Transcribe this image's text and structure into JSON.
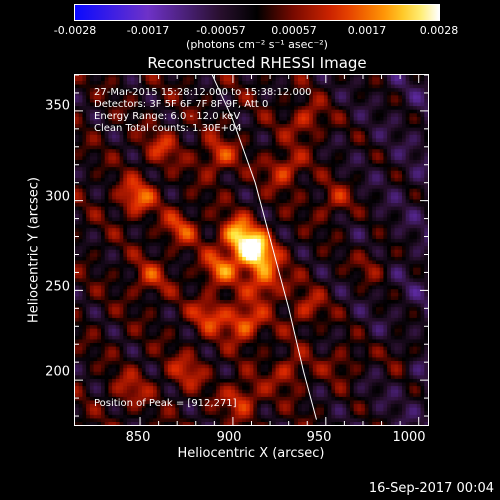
{
  "colorbar": {
    "ticks": [
      "-0.0028",
      "-0.0017",
      "-0.00057",
      "0.00057",
      "0.0017",
      "0.0028"
    ],
    "units": "(photons cm⁻² s⁻¹ asec⁻²)",
    "range": [
      -0.0028,
      0.0028
    ]
  },
  "plot": {
    "title": "Reconstructed RHESSI Image",
    "info_lines": [
      "27-Mar-2015 15:28:12.000 to 15:38:12.000",
      "Detectors: 3F 5F 6F 7F 8F 9F, Att 0",
      "Energy Range: 6.0 - 12.0 keV",
      "Clean     Total counts: 1.30E+04"
    ],
    "peak_label": "Position of Peak = [912,271]"
  },
  "footer": {
    "date": "16-Sep-2017 00:04"
  },
  "colors": {
    "background": "#000000",
    "axis": "#ffffff",
    "limb": "#ffffff"
  },
  "chart_data": {
    "type": "heatmap",
    "title": "Reconstructed RHESSI Image",
    "xlabel": "Heliocentric X (arcsec)",
    "ylabel": "Heliocentric Y (arcsec)",
    "xlim": [
      815,
      1005
    ],
    "ylim": [
      175,
      370
    ],
    "xticks": [
      "850",
      "900",
      "950",
      "1000"
    ],
    "yticks": [
      "200",
      "250",
      "300",
      "350"
    ],
    "peak": [
      912,
      271
    ],
    "colormap": "blue-purple-black-red-orange-yellow-white",
    "sources": [
      {
        "x": 912,
        "y": 271,
        "amplitude": 1.0
      },
      {
        "x": 903,
        "y": 281,
        "amplitude": 0.75
      },
      {
        "x": 918,
        "y": 255,
        "amplitude": 0.55
      },
      {
        "x": 893,
        "y": 262,
        "amplitude": 0.5
      },
      {
        "x": 906,
        "y": 232,
        "amplitude": 0.6
      },
      {
        "x": 888,
        "y": 237,
        "amplitude": 0.45
      },
      {
        "x": 848,
        "y": 302,
        "amplitude": 0.55
      },
      {
        "x": 872,
        "y": 285,
        "amplitude": 0.4
      },
      {
        "x": 855,
        "y": 257,
        "amplitude": 0.35
      },
      {
        "x": 892,
        "y": 325,
        "amplitude": 0.45
      },
      {
        "x": 862,
        "y": 330,
        "amplitude": 0.35
      },
      {
        "x": 928,
        "y": 318,
        "amplitude": 0.45
      },
      {
        "x": 940,
        "y": 345,
        "amplitude": 0.4
      },
      {
        "x": 955,
        "y": 300,
        "amplitude": 0.35
      },
      {
        "x": 930,
        "y": 205,
        "amplitude": 0.35
      },
      {
        "x": 905,
        "y": 190,
        "amplitude": 0.45
      },
      {
        "x": 875,
        "y": 205,
        "amplitude": 0.35
      },
      {
        "x": 845,
        "y": 195,
        "amplitude": 0.3
      },
      {
        "x": 940,
        "y": 240,
        "amplitude": 0.35
      },
      {
        "x": 960,
        "y": 210,
        "amplitude": 0.3
      },
      {
        "x": 975,
        "y": 265,
        "amplitude": 0.3
      },
      {
        "x": 990,
        "y": 215,
        "amplitude": 0.25
      }
    ],
    "limb_curve": [
      [
        888,
        372
      ],
      [
        900,
        345
      ],
      [
        912,
        310
      ],
      [
        921,
        275
      ],
      [
        930,
        240
      ],
      [
        938,
        205
      ],
      [
        945,
        178
      ]
    ]
  }
}
